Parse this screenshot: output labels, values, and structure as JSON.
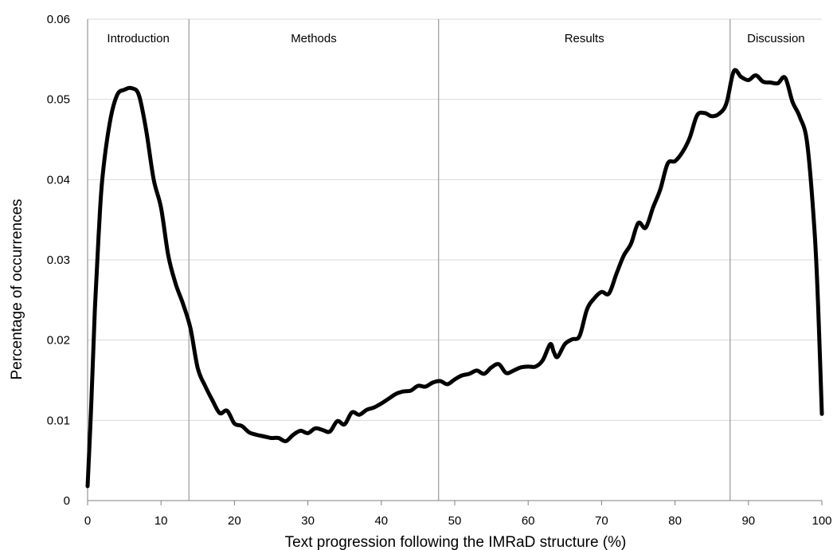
{
  "chart_data": {
    "type": "line",
    "title": "",
    "xlabel": "Text progression following the IMRaD structure (%)",
    "ylabel": "Percentage of occurrences",
    "xlim": [
      0,
      100
    ],
    "ylim": [
      0,
      0.06
    ],
    "xticks": [
      "0",
      "10",
      "20",
      "30",
      "40",
      "50",
      "60",
      "70",
      "80",
      "90",
      "100"
    ],
    "yticks": [
      "0",
      "0.01",
      "0.02",
      "0.03",
      "0.04",
      "0.05",
      "0.06"
    ],
    "grid": true,
    "sections": [
      {
        "label": "Introduction",
        "start": 0,
        "end": 13.8
      },
      {
        "label": "Methods",
        "start": 13.8,
        "end": 47.8
      },
      {
        "label": "Results",
        "start": 47.8,
        "end": 87.5
      },
      {
        "label": "Discussion",
        "start": 87.5,
        "end": 100
      }
    ],
    "dividers": [
      13.8,
      47.8,
      87.5
    ],
    "series": [
      {
        "color": "#000000",
        "x": [
          0,
          0.5,
          1,
          1.5,
          2,
          3,
          4,
          5,
          6,
          7,
          8,
          9,
          10,
          11,
          12,
          13,
          14,
          15,
          16,
          17,
          18,
          19,
          20,
          21,
          22,
          23,
          24,
          25,
          26,
          27,
          28,
          29,
          30,
          31,
          32,
          33,
          34,
          35,
          36,
          37,
          38,
          39,
          40,
          41,
          42,
          43,
          44,
          45,
          46,
          47,
          48,
          49,
          50,
          51,
          52,
          53,
          54,
          55,
          56,
          57,
          58,
          59,
          60,
          61,
          62,
          63,
          63.5,
          64,
          65,
          66,
          67,
          68,
          69,
          70,
          71,
          72,
          73,
          74,
          75,
          76,
          77,
          78,
          79,
          80,
          81,
          82,
          83,
          84,
          85,
          86,
          87,
          88,
          89,
          90,
          91,
          92,
          93,
          94,
          95,
          96,
          97,
          98,
          99,
          99.5,
          100
        ],
        "y": [
          0.0018,
          0.012,
          0.024,
          0.033,
          0.04,
          0.047,
          0.0505,
          0.0512,
          0.0514,
          0.0505,
          0.046,
          0.04,
          0.0365,
          0.0305,
          0.027,
          0.0245,
          0.0215,
          0.0165,
          0.0143,
          0.0125,
          0.0109,
          0.0112,
          0.0096,
          0.0093,
          0.0085,
          0.0082,
          0.008,
          0.0078,
          0.0078,
          0.0074,
          0.0082,
          0.0087,
          0.0084,
          0.009,
          0.0088,
          0.0086,
          0.0099,
          0.0095,
          0.011,
          0.0107,
          0.0113,
          0.0116,
          0.0121,
          0.0127,
          0.0133,
          0.0136,
          0.0137,
          0.0143,
          0.0142,
          0.0147,
          0.0149,
          0.0145,
          0.0151,
          0.0156,
          0.0158,
          0.0162,
          0.0158,
          0.0166,
          0.017,
          0.0159,
          0.0162,
          0.0166,
          0.0167,
          0.0167,
          0.0175,
          0.0195,
          0.0185,
          0.0179,
          0.0195,
          0.0201,
          0.0205,
          0.0238,
          0.0252,
          0.026,
          0.0258,
          0.0282,
          0.0305,
          0.032,
          0.0346,
          0.034,
          0.0365,
          0.0388,
          0.042,
          0.0423,
          0.0434,
          0.0452,
          0.048,
          0.0483,
          0.0479,
          0.0482,
          0.0495,
          0.0535,
          0.0528,
          0.0524,
          0.053,
          0.0522,
          0.0521,
          0.052,
          0.0527,
          0.0497,
          0.0478,
          0.0445,
          0.0336,
          0.024,
          0.0108
        ]
      }
    ]
  }
}
